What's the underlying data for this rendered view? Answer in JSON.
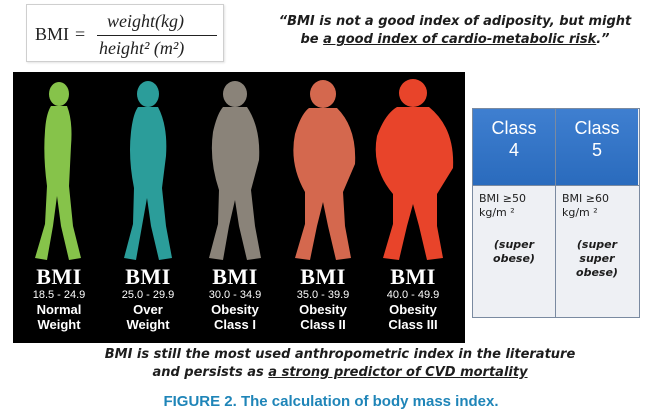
{
  "formula": {
    "lhs": "BMI",
    "eq": "=",
    "numerator": "weight(kg)",
    "denominator": "height² (m²)"
  },
  "quote": {
    "line1": "“BMI is not a good index of adiposity, but might",
    "line2_prefix": "be ",
    "line2_underlined": "a good index of cardio-metabolic risk",
    "line2_suffix": ".”"
  },
  "figures": [
    {
      "bmi": "BMI",
      "range": "18.5 - 24.9",
      "cat1": "Normal",
      "cat2": "Weight",
      "color": "#86c34a"
    },
    {
      "bmi": "BMI",
      "range": "25.0 - 29.9",
      "cat1": "Over",
      "cat2": "Weight",
      "color": "#2b9d9a"
    },
    {
      "bmi": "BMI",
      "range": "30.0 - 34.9",
      "cat1": "Obesity",
      "cat2": "Class I",
      "color": "#8a8379"
    },
    {
      "bmi": "BMI",
      "range": "35.0 - 39.9",
      "cat1": "Obesity",
      "cat2": "Class II",
      "color": "#d4684e"
    },
    {
      "bmi": "BMI",
      "range": "40.0 - 49.9",
      "cat1": "Obesity",
      "cat2": "Class III",
      "color": "#e8442a"
    }
  ],
  "classes": [
    {
      "head1": "Class",
      "head2": "4",
      "crit1": "BMI ≥50",
      "crit2": "kg/m ²",
      "desc1": "(super",
      "desc2": "obese)",
      "desc3": ""
    },
    {
      "head1": "Class",
      "head2": "5",
      "crit1": "BMI ≥60",
      "crit2": "kg/m ²",
      "desc1": "(super",
      "desc2": "super",
      "desc3": "obese)"
    }
  ],
  "bottom_note": {
    "line1": "BMI is still the most used anthropometric index in the literature",
    "line2_prefix": "and persists as ",
    "line2_underlined": "a strong predictor of CVD mortality"
  },
  "caption": "FIGURE 2. The calculation of body mass index."
}
